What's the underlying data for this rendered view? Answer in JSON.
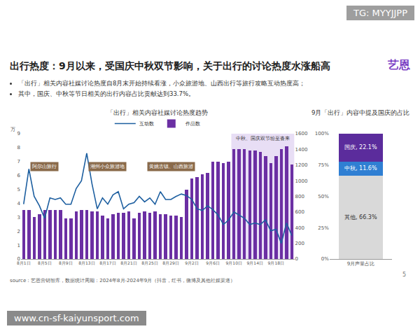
{
  "header": {
    "watermark": "TG: MYYJJPP",
    "title": "出行热度：9月以来，受国庆中秋双节影响，关于出行的讨论热度水涨船高",
    "logo": "艺恩",
    "bullets": [
      "「出行」相关内容社媒讨论热度自8月末开始持续看涨，小众旅游地、山西出行等旅行攻略互动热度高；",
      "其中，国庆、中秋等节日相关的出行内容占比贡献达到33.7%。"
    ]
  },
  "chart_data": [
    {
      "type": "bar",
      "title": "「出行」相关内容社媒讨论热度趋势",
      "y_label": "万",
      "categories": [
        "8月1日",
        null,
        null,
        null,
        "8月5日",
        null,
        null,
        null,
        "8月9日",
        null,
        null,
        null,
        "8月13日",
        null,
        null,
        null,
        "8月17日",
        null,
        null,
        null,
        "8月21日",
        null,
        null,
        null,
        "8月25日",
        null,
        null,
        null,
        "8月29日",
        null,
        null,
        null,
        "9月2日",
        null,
        null,
        null,
        "9月6日",
        null,
        null,
        null,
        "9月10日",
        null,
        null,
        null,
        "9月14日",
        null,
        null,
        null,
        "9月18日",
        null,
        null,
        null
      ],
      "series": [
        {
          "name": "作品数",
          "type": "bar",
          "color": "#6b2fa3",
          "values": [
            3.5,
            3.5,
            3.0,
            3.2,
            3.5,
            3.5,
            3.5,
            3.5,
            2.9,
            2.9,
            3.4,
            3.5,
            3.5,
            3.4,
            3.4,
            3.1,
            2.9,
            3.2,
            3.3,
            3.3,
            3.4,
            2.9,
            3.3,
            3.4,
            3.3,
            3.4,
            3.2,
            3.2,
            3.1,
            3.1,
            3.0,
            5.0,
            5.8,
            5.9,
            6.1,
            6.2,
            7.0,
            7.0,
            6.9,
            7.0,
            7.9,
            7.9,
            7.9,
            7.8,
            7.8,
            7.7,
            7.4,
            6.9,
            7.4,
            7.9,
            8.1,
            6.8
          ]
        },
        {
          "name": "互动数",
          "type": "line",
          "color": "#1d5fa0",
          "axis": "y2",
          "values": [
            700,
            1150,
            800,
            680,
            520,
            780,
            760,
            780,
            700,
            700,
            900,
            1000,
            1350,
            960,
            640,
            780,
            700,
            820,
            860,
            640,
            700,
            720,
            800,
            730,
            780,
            700,
            860,
            760,
            760,
            800,
            830,
            810,
            760,
            640,
            620,
            680,
            630,
            560,
            440,
            500,
            600,
            560,
            520,
            440,
            460,
            440,
            500,
            360,
            380,
            200,
            460,
            300
          ]
        }
      ],
      "ylim": [
        0,
        9
      ],
      "yticks": [
        0,
        1,
        2,
        3,
        4,
        5,
        6,
        7,
        8,
        9
      ],
      "y2lim": [
        0,
        1600
      ],
      "y2ticks": [
        0,
        200,
        400,
        600,
        800,
        1000,
        1200,
        1400,
        1600
      ],
      "grid": false,
      "legend": "top",
      "annotations": [
        {
          "text": "阿尔山旅行",
          "category": "8月5日"
        },
        {
          "text": "潮州小众旅游地",
          "category": "8月17日"
        },
        {
          "text": "黄姚古镇、山西旅游",
          "category": "8月29日"
        },
        {
          "text": "中秋、国庆双节纷至沓来",
          "start": "9月10日"
        }
      ]
    },
    {
      "type": "bar",
      "stacked": true,
      "title": "9月「出行」内容中提及国庆的占比",
      "categories": [
        "9月声量占比"
      ],
      "series": [
        {
          "name": "其他",
          "color": "#d9d9d9",
          "values": [
            66.3
          ],
          "value_labels": [
            "其他, 66.3%"
          ]
        },
        {
          "name": "中秋",
          "color": "#2f7fd3",
          "values": [
            11.6
          ],
          "value_labels": [
            "中秋, 11.6%"
          ]
        },
        {
          "name": "国庆",
          "color": "#5b2c9c",
          "values": [
            22.1
          ],
          "value_labels": [
            "国庆, 22.1%"
          ]
        }
      ],
      "ylim": [
        0,
        100
      ],
      "yticks": [
        {
          "value": 0,
          "label": "0%"
        },
        {
          "value": 25,
          "label": "25%"
        },
        {
          "value": 50,
          "label": "50%"
        },
        {
          "value": 75,
          "label": "75%"
        },
        {
          "value": 100,
          "label": "100%"
        }
      ],
      "grid": false,
      "data_labels": true
    }
  ],
  "footer": {
    "source": "source：艺恩营销智库，数据统计周期：2024年8月-2024年9月（抖音，红书，微博及其他社媒渠道）",
    "page": "5",
    "watermark": "www.cn-sf-kaiyunsport.com"
  }
}
